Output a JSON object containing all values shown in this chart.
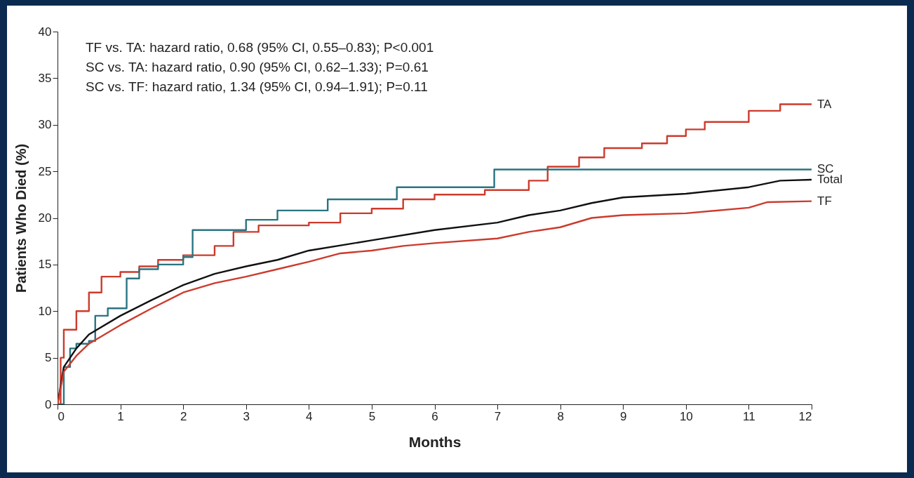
{
  "chart_data": {
    "type": "line",
    "xlabel": "Months",
    "ylabel": "Patients Who Died (%)",
    "annotations": [
      "TF vs. TA: hazard ratio, 0.68 (95% CI, 0.55–0.83); P<0.001",
      "SC vs. TA: hazard ratio, 0.90 (95% CI, 0.62–1.33); P=0.61",
      "SC vs. TF: hazard ratio, 1.34 (95% CI, 0.94–1.91); P=0.11"
    ],
    "xlim": [
      0,
      12
    ],
    "xticks": [
      0,
      1,
      2,
      3,
      4,
      5,
      6,
      7,
      8,
      9,
      10,
      11,
      12
    ],
    "ylim": [
      0,
      40
    ],
    "yticks": [
      0,
      5,
      10,
      15,
      20,
      25,
      30,
      35,
      40
    ],
    "grid": false,
    "legend": false,
    "marker": "none",
    "line_style": "solid",
    "series": [
      {
        "name": "TA",
        "type": "step",
        "color": "#cc3b2c",
        "x": [
          0,
          0.05,
          0.1,
          0.3,
          0.5,
          0.7,
          1,
          1.3,
          1.6,
          2,
          2.5,
          2.8,
          3.2,
          4,
          4.5,
          5,
          5.5,
          6,
          6.8,
          7.5,
          7.8,
          8.3,
          8.7,
          9.3,
          9.7,
          10,
          10.3,
          11,
          11.5,
          12
        ],
        "values": [
          0,
          5,
          8,
          10,
          12,
          13.7,
          14.2,
          14.8,
          15.5,
          16,
          17,
          18.5,
          19.2,
          19.5,
          20.5,
          21,
          22,
          22.5,
          23,
          24,
          25.5,
          26.5,
          27.5,
          28,
          28.8,
          29.5,
          30.3,
          31.5,
          32.2,
          32.2
        ]
      },
      {
        "name": "SC",
        "type": "step",
        "color": "#2a7482",
        "x": [
          0,
          0.1,
          0.2,
          0.3,
          0.5,
          0.6,
          0.8,
          1.1,
          1.3,
          1.6,
          2,
          2.15,
          3,
          3.5,
          4.3,
          5.4,
          6.95,
          12
        ],
        "values": [
          0,
          4,
          6,
          6.5,
          6.8,
          9.5,
          10.3,
          13.5,
          14.5,
          15,
          15.8,
          18.7,
          19.8,
          20.8,
          22,
          23.3,
          25.2,
          25.2
        ]
      },
      {
        "name": "Total",
        "color": "#111111",
        "x": [
          0,
          0.1,
          0.3,
          0.5,
          1,
          1.5,
          2,
          2.5,
          3,
          3.5,
          4,
          5,
          6,
          7,
          7.5,
          8,
          8.5,
          9,
          10,
          11,
          11.5,
          12
        ],
        "values": [
          0,
          4,
          6,
          7.5,
          9.5,
          11.2,
          12.8,
          14,
          14.8,
          15.5,
          16.5,
          17.6,
          18.7,
          19.5,
          20.3,
          20.8,
          21.6,
          22.2,
          22.6,
          23.3,
          24,
          24.1
        ]
      },
      {
        "name": "TF",
        "color": "#cc3b2c",
        "x": [
          0,
          0.1,
          0.3,
          0.5,
          1,
          1.5,
          2,
          2.5,
          3,
          3.5,
          4,
          4.5,
          5,
          5.5,
          6,
          7,
          7.5,
          8,
          8.5,
          9,
          10,
          11,
          11.3,
          12
        ],
        "values": [
          0,
          3.5,
          5.2,
          6.5,
          8.5,
          10.3,
          12,
          13,
          13.7,
          14.5,
          15.3,
          16.2,
          16.5,
          17,
          17.3,
          17.8,
          18.5,
          19,
          20,
          20.3,
          20.5,
          21.1,
          21.7,
          21.8
        ]
      }
    ]
  }
}
